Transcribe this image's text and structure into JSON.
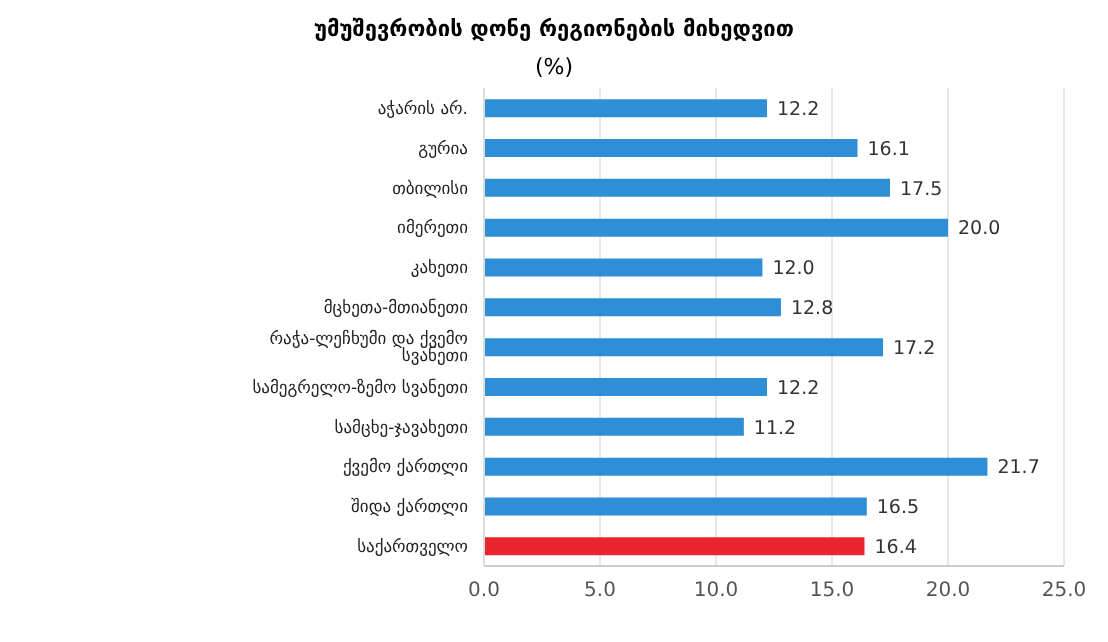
{
  "chart_data": {
    "type": "bar",
    "orientation": "horizontal",
    "title": "უმუშევრობის დონე რეგიონების მიხედვით",
    "subtitle": "(%)",
    "categories": [
      "აჭარის არ.",
      "გურია",
      "თბილისი",
      "იმერეთი",
      "კახეთი",
      "მცხეთა-მთიანეთი",
      "რაჭა-ლეჩხუმი და ქვემო სვანეთი",
      "სამეგრელო-ზემო სვანეთი",
      "სამცხე-ჯავახეთი",
      "ქვემო ქართლი",
      "შიდა ქართლი",
      "საქართველო"
    ],
    "values": [
      12.2,
      16.1,
      17.5,
      20.0,
      12.0,
      12.8,
      17.2,
      12.2,
      11.2,
      21.7,
      16.5,
      16.4
    ],
    "value_labels": [
      "12.2",
      "16.1",
      "17.5",
      "20.0",
      "12.0",
      "12.8",
      "17.2",
      "12.2",
      "11.2",
      "21.7",
      "16.5",
      "16.4"
    ],
    "colors": [
      "#2e8fd6",
      "#2e8fd6",
      "#2e8fd6",
      "#2e8fd6",
      "#2e8fd6",
      "#2e8fd6",
      "#2e8fd6",
      "#2e8fd6",
      "#2e8fd6",
      "#2e8fd6",
      "#2e8fd6",
      "#e8242c"
    ],
    "xlim": [
      0,
      25
    ],
    "xticks": [
      {
        "value": 0,
        "label": "0.0"
      },
      {
        "value": 5,
        "label": "5.0"
      },
      {
        "value": 10,
        "label": "10.0"
      },
      {
        "value": 15,
        "label": "15.0"
      },
      {
        "value": 20,
        "label": "20.0"
      },
      {
        "value": 25,
        "label": "25.0"
      }
    ],
    "grid": "x"
  }
}
